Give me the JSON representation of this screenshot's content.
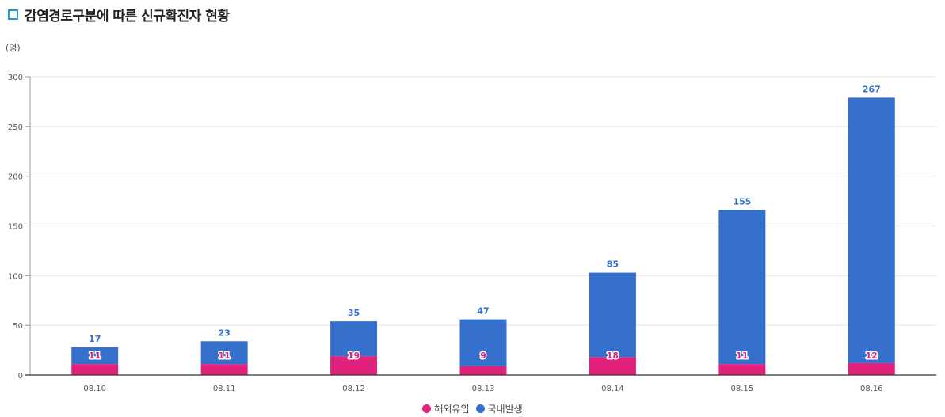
{
  "chart_data": {
    "type": "bar",
    "stacked": true,
    "title": "감염경로구분에 따른 신규확진자 현황",
    "ylabel": "(명)",
    "xlabel": "",
    "categories": [
      "08.10",
      "08.11",
      "08.12",
      "08.13",
      "08.14",
      "08.15",
      "08.16"
    ],
    "series": [
      {
        "name": "해외유입",
        "color": "#e0227c",
        "values": [
          11,
          11,
          19,
          9,
          18,
          11,
          12
        ]
      },
      {
        "name": "국내발생",
        "color": "#3570cc",
        "values": [
          17,
          23,
          35,
          47,
          85,
          155,
          267
        ]
      }
    ],
    "ylim": [
      0,
      300
    ],
    "yticks": [
      0,
      50,
      100,
      150,
      200,
      250,
      300
    ],
    "grid": true,
    "legend_position": "bottom"
  }
}
